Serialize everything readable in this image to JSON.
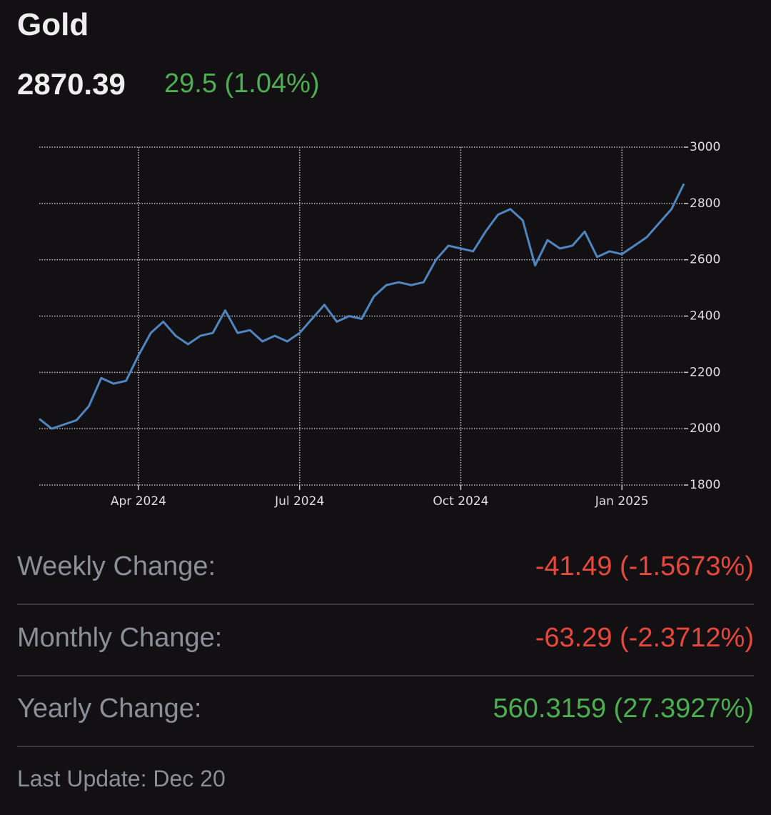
{
  "header": {
    "title": "Gold",
    "price": "2870.39",
    "change": "29.5 (1.04%)",
    "change_color": "#4caf50"
  },
  "chart_data": {
    "type": "line",
    "categories": [
      null,
      null,
      null,
      null,
      null,
      null,
      null,
      null,
      "Apr 2024",
      null,
      null,
      null,
      null,
      null,
      null,
      null,
      null,
      null,
      null,
      null,
      null,
      "Jul 2024",
      null,
      null,
      null,
      null,
      null,
      null,
      null,
      null,
      null,
      null,
      null,
      null,
      "Oct 2024",
      null,
      null,
      null,
      null,
      null,
      null,
      null,
      null,
      null,
      null,
      null,
      null,
      "Jan 2025",
      null,
      null,
      null,
      null,
      null
    ],
    "values": [
      2035,
      2000,
      2015,
      2030,
      2080,
      2180,
      2160,
      2170,
      2260,
      2340,
      2380,
      2330,
      2300,
      2330,
      2340,
      2420,
      2340,
      2350,
      2310,
      2330,
      2310,
      2340,
      2390,
      2440,
      2380,
      2400,
      2390,
      2470,
      2510,
      2520,
      2510,
      2520,
      2600,
      2650,
      2640,
      2630,
      2700,
      2760,
      2780,
      2740,
      2580,
      2670,
      2640,
      2650,
      2700,
      2610,
      2630,
      2620,
      2650,
      2680,
      2730,
      2780,
      2870
    ],
    "color": "#4f86c0",
    "ylim": [
      1800,
      3000
    ],
    "yticks": [
      1800,
      2000,
      2200,
      2400,
      2600,
      2800,
      3000
    ],
    "grid": true
  },
  "changes": [
    {
      "label": "Weekly Change:",
      "value": "-41.49 (-1.5673%)",
      "color": "#e8473c"
    },
    {
      "label": "Monthly Change:",
      "value": "-63.29 (-2.3712%)",
      "color": "#e8473c"
    },
    {
      "label": "Yearly Change:",
      "value": "560.3159 (27.3927%)",
      "color": "#4caf50"
    }
  ],
  "footer": {
    "last_update": "Last Update: Dec 20"
  }
}
